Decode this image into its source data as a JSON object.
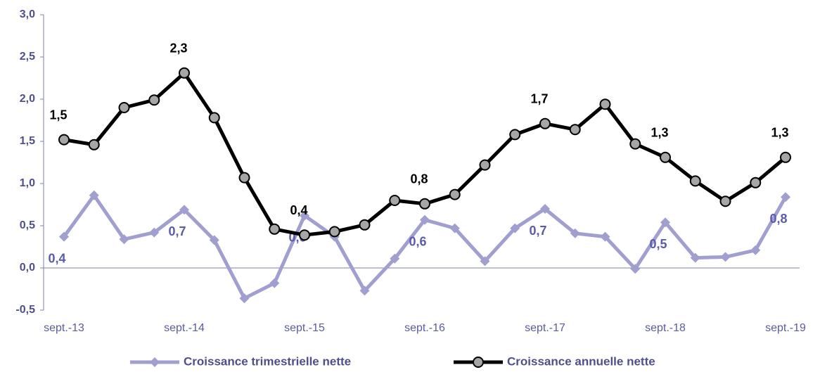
{
  "chart_data": {
    "type": "line",
    "categories": [
      "sept.-13",
      null,
      null,
      null,
      "sept.-14",
      null,
      null,
      null,
      "sept.-15",
      null,
      null,
      null,
      "sept.-16",
      null,
      null,
      null,
      "sept.-17",
      null,
      null,
      null,
      "sept.-18",
      null,
      null,
      null,
      "sept.-19"
    ],
    "series": [
      {
        "name": "Croissance trimestrielle nette",
        "color": "#a09fcf",
        "marker": "diamond",
        "values": [
          0.37,
          0.86,
          0.34,
          0.42,
          0.69,
          0.33,
          -0.36,
          -0.18,
          0.62,
          0.37,
          -0.27,
          0.11,
          0.57,
          0.47,
          0.08,
          0.47,
          0.7,
          0.41,
          0.37,
          -0.01,
          0.54,
          0.12,
          0.13,
          0.21,
          0.84
        ],
        "value_labels": [
          "0,4",
          null,
          null,
          null,
          "0,7",
          null,
          null,
          null,
          "0,6",
          null,
          null,
          null,
          "0,6",
          null,
          null,
          null,
          "0,7",
          null,
          null,
          null,
          "0,5",
          null,
          null,
          null,
          "0,8"
        ]
      },
      {
        "name": "Croissance annuelle nette",
        "color": "#000000",
        "marker": "circle",
        "values": [
          1.52,
          1.46,
          1.9,
          1.99,
          2.31,
          1.78,
          1.07,
          0.46,
          0.39,
          0.43,
          0.51,
          0.8,
          0.76,
          0.87,
          1.22,
          1.58,
          1.71,
          1.64,
          1.94,
          1.47,
          1.31,
          1.03,
          0.79,
          1.01,
          1.31
        ],
        "value_labels": [
          "1,5",
          null,
          null,
          null,
          "2,3",
          null,
          null,
          null,
          "0,4",
          null,
          null,
          null,
          "0,8",
          null,
          null,
          null,
          "1,7",
          null,
          null,
          null,
          "1,3",
          null,
          null,
          null,
          "1,3"
        ]
      }
    ],
    "ylim": [
      -0.5,
      3.0
    ],
    "yticks": [
      {
        "value": -0.5,
        "label": "-0,5"
      },
      {
        "value": 0,
        "label": "0,0"
      },
      {
        "value": 0.5,
        "label": "0,5"
      },
      {
        "value": 1.0,
        "label": "1,0"
      },
      {
        "value": 1.5,
        "label": "1,5"
      },
      {
        "value": 2.0,
        "label": "2,0"
      },
      {
        "value": 2.5,
        "label": "2,5"
      },
      {
        "value": 3.0,
        "label": "3,0"
      }
    ],
    "legend": "bottom"
  }
}
